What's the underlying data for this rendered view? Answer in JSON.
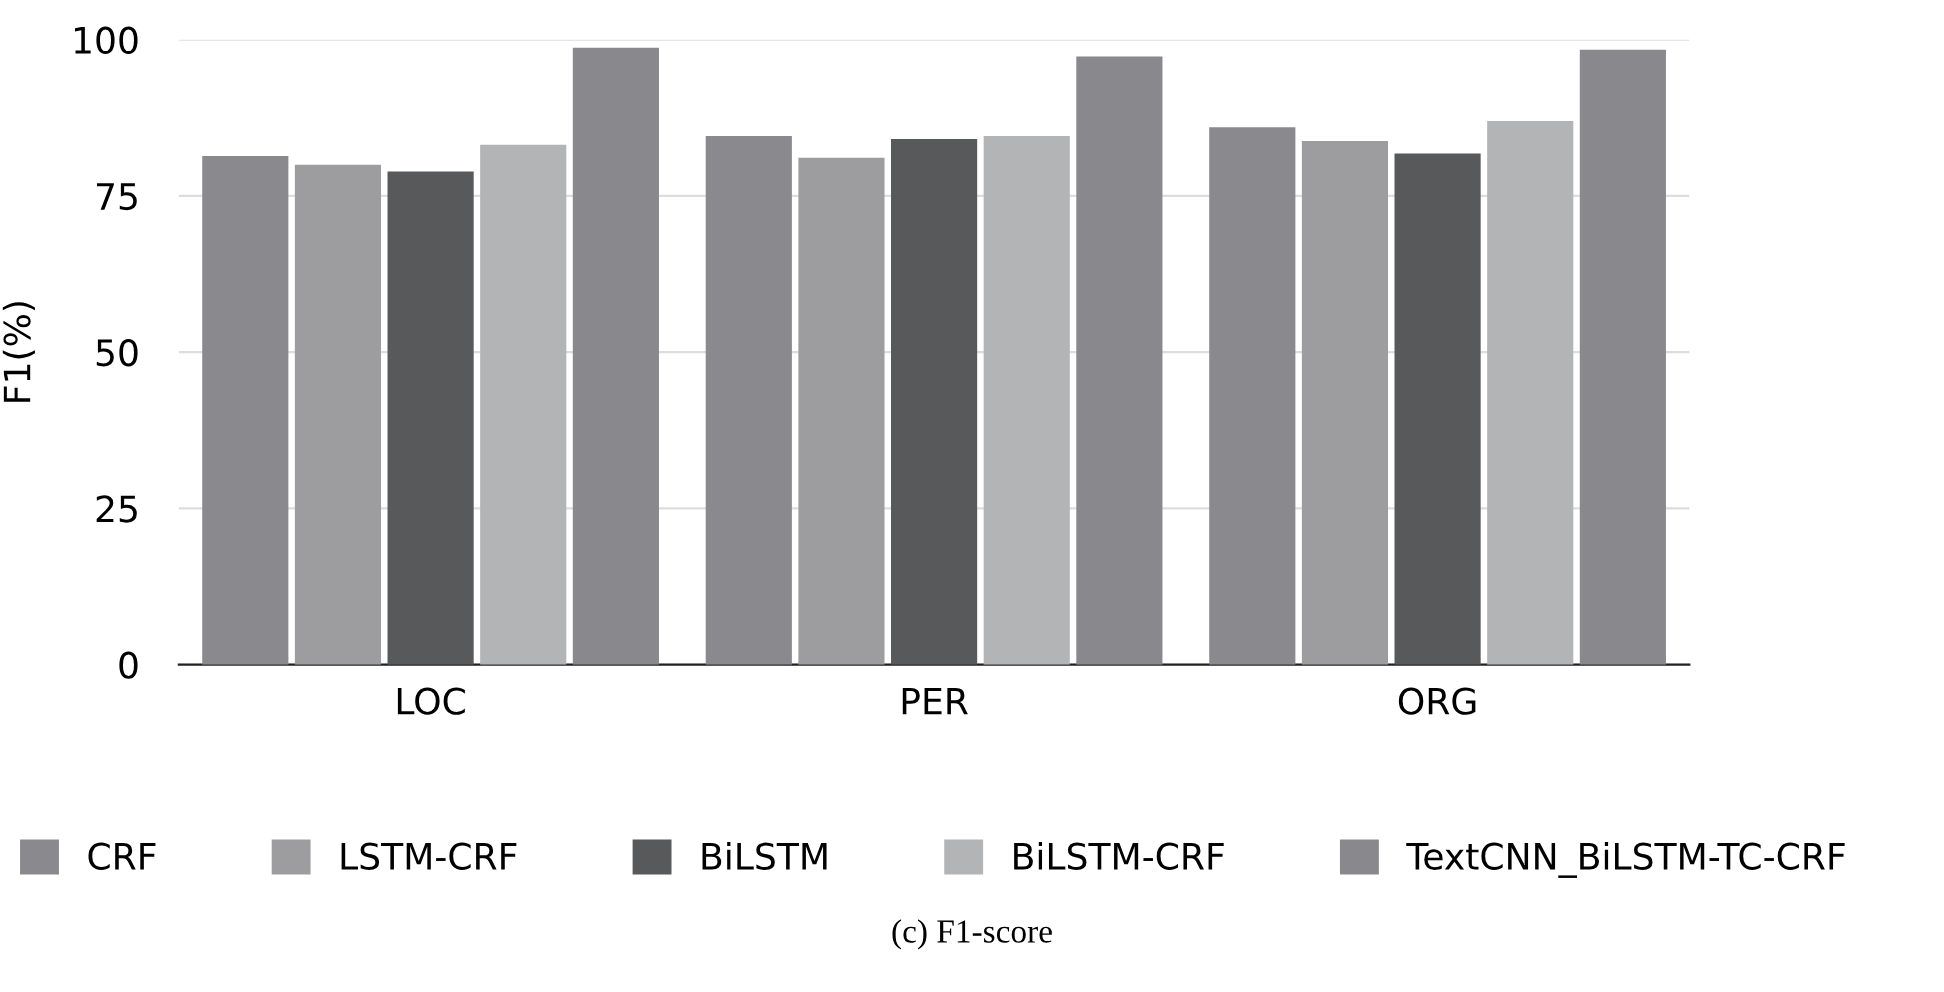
{
  "chart_data": {
    "type": "bar",
    "ylabel": "F1(%)",
    "categories": [
      "LOC",
      "PER",
      "ORG"
    ],
    "series": [
      {
        "name": "CRF",
        "color": "#8a8a8e",
        "values": [
          81.4,
          84.6,
          86.0
        ]
      },
      {
        "name": "LSTM-CRF",
        "color": "#9d9d9f",
        "values": [
          80.0,
          81.1,
          83.8
        ]
      },
      {
        "name": "BiLSTM",
        "color": "#58595b",
        "values": [
          78.9,
          84.1,
          81.8
        ]
      },
      {
        "name": "BiLSTM-CRF",
        "color": "#b3b4b6",
        "values": [
          83.2,
          84.6,
          87.0
        ]
      },
      {
        "name": "TextCNN_BiLSTM-TC-CRF",
        "color": "#89898d",
        "values": [
          98.7,
          97.3,
          98.4
        ]
      }
    ],
    "ylim": [
      0,
      100
    ],
    "yticks": [
      0,
      25,
      50,
      75,
      100
    ],
    "grid": "y",
    "legend": "bottom",
    "annotations": [
      "(c) F1-score"
    ]
  }
}
